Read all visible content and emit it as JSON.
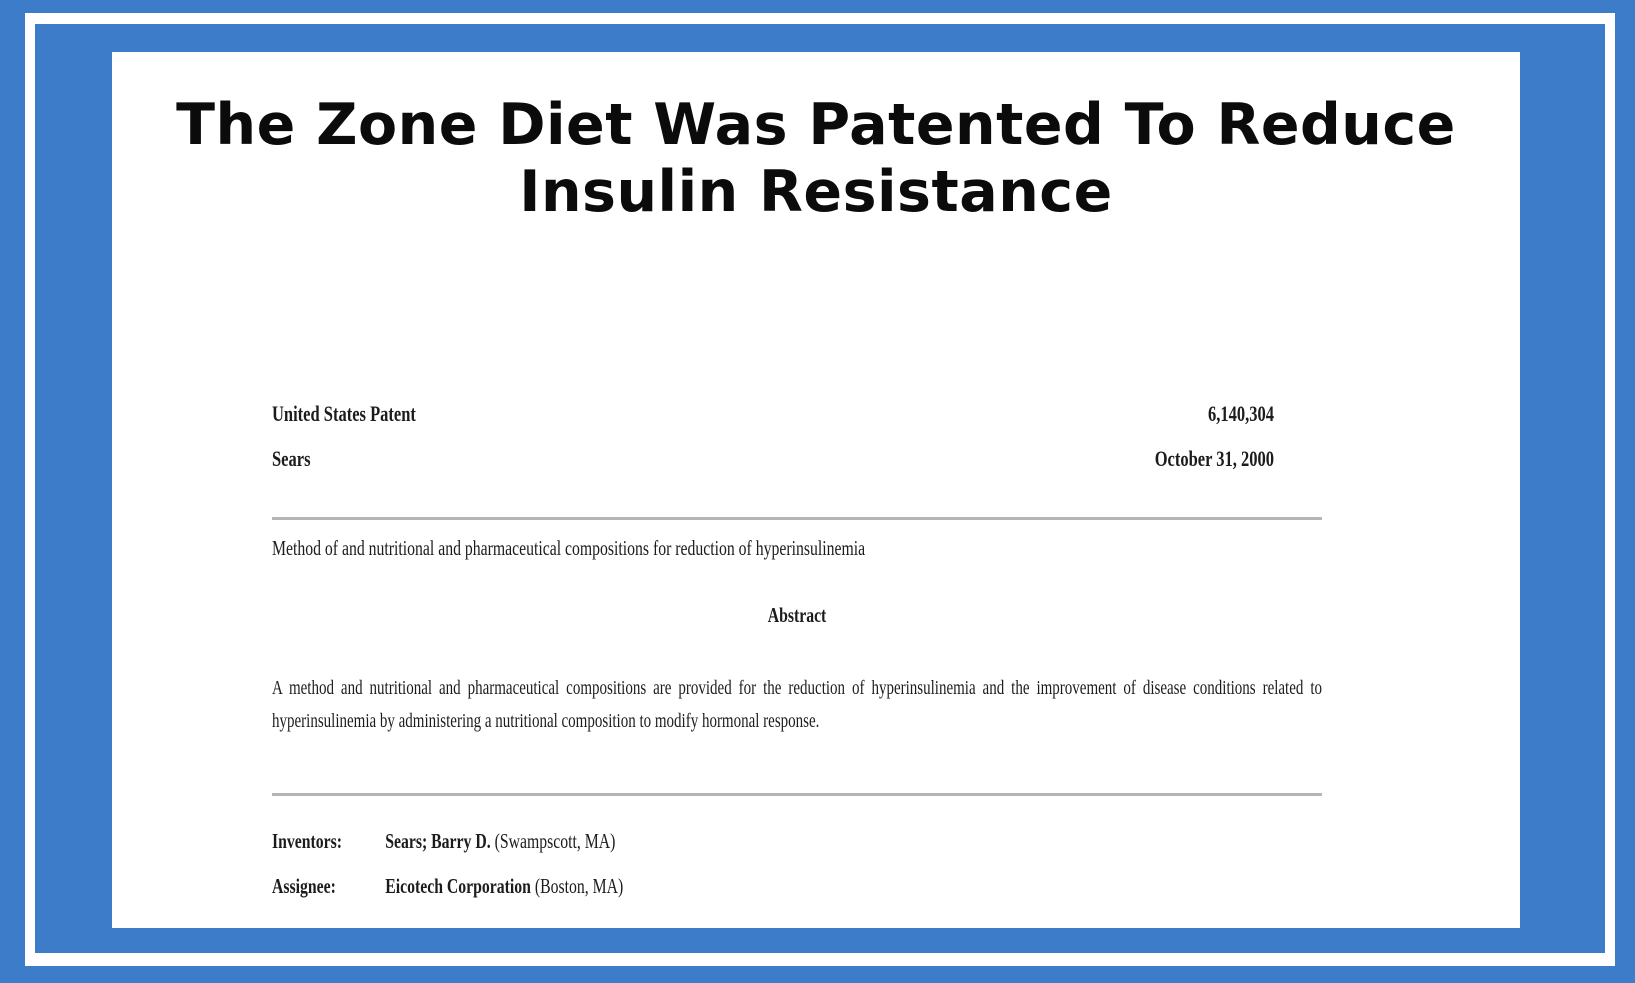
{
  "slide": {
    "title_line1": "The Zone Diet Was Patented To Reduce",
    "title_line2": "Insulin Resistance"
  },
  "patent": {
    "header_left_line1": "United States Patent",
    "header_left_line2": "Sears",
    "header_right_line1": "6,140,304",
    "header_right_line2": "October 31, 2000",
    "title": "Method of and nutritional and pharmaceutical compositions for reduction of hyperinsulinemia",
    "abstract_heading": "Abstract",
    "abstract_text": "A method and nutritional and pharmaceutical compositions are provided for the reduction of hyperinsulinemia and the improvement of disease conditions related to hyperinsulinemia by administering a nutritional composition to modify hormonal response.",
    "inventors_label": "Inventors:",
    "inventors_name": "Sears; Barry D.",
    "inventors_location": "(Swampscott, MA)",
    "assignee_label": "Assignee:",
    "assignee_name": "Eicotech Corporation",
    "assignee_location": "(Boston, MA)"
  },
  "colors": {
    "frame_blue": "#3d7cc8",
    "rule_gray": "#b5b5b5",
    "title_black": "#0b0b0b"
  }
}
